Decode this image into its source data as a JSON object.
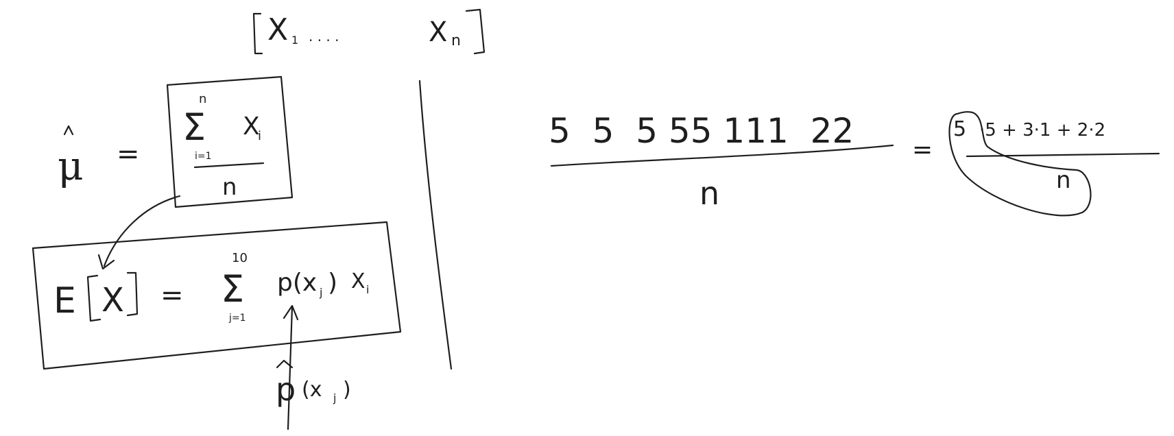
{
  "board": {
    "ink_color": "#1e1e1e",
    "background": "#ffffff"
  },
  "sample_vector": {
    "first": "X",
    "first_sub": "1",
    "dots": ". . . .",
    "last": "X",
    "last_sub": "n"
  },
  "mu_hat": {
    "symbol": "μ",
    "equals": "=",
    "sum_upper": "n",
    "sum_symbol": "Σ",
    "sum_lower": "i=1",
    "term": "X",
    "term_sub": "i",
    "denominator": "n"
  },
  "expectation": {
    "operator": "E",
    "var": "X",
    "equals": "=",
    "sum_upper": "10",
    "sum_symbol": "Σ",
    "sum_lower": "j=1",
    "term": "p(x",
    "term_sub": "j",
    "term_close": ")",
    "term2": "X",
    "term2_sub": "i"
  },
  "p_hat": {
    "letter": "p",
    "arg": "(x",
    "arg_sub": "j",
    "arg_close": ")"
  },
  "numeric_example": {
    "numerator": "5  5  5 55 111  22",
    "equals": "=",
    "circled": "5",
    "rest": "·5 + 3·1 + 2·2",
    "denominator": "n",
    "circled_denominator": "n"
  }
}
